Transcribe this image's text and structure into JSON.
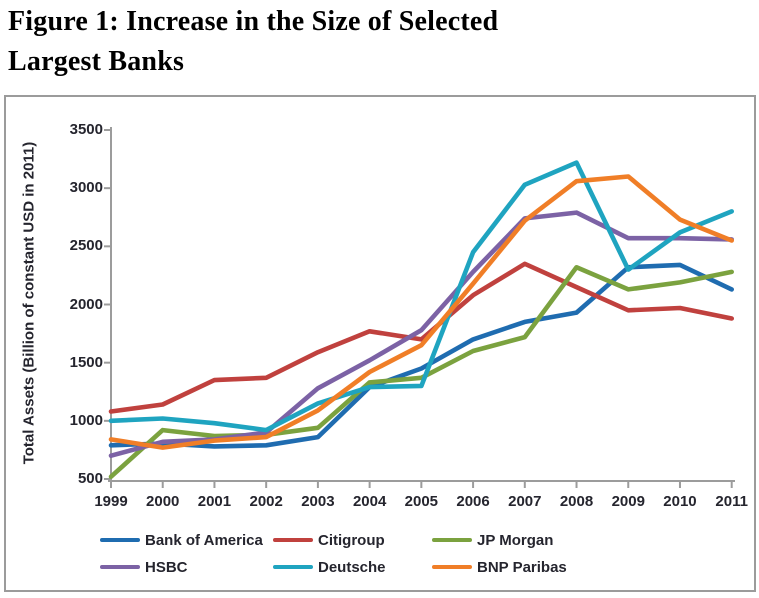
{
  "page": {
    "title_line1": "Figure 1: Increase in the Size of Selected",
    "title_line2": "Largest Banks"
  },
  "chart_data": {
    "type": "line",
    "title": "Figure 1: Increase in the Size of Selected Largest Banks",
    "xlabel": "",
    "ylabel": "Total Assets (Billion of constant USD in 2011)",
    "ylim": [
      500,
      3500
    ],
    "yticks": [
      500,
      1000,
      1500,
      2000,
      2500,
      3000,
      3500
    ],
    "x": [
      1999,
      2000,
      2001,
      2002,
      2003,
      2004,
      2005,
      2006,
      2007,
      2008,
      2009,
      2010,
      2011
    ],
    "grid": false,
    "legend_position": "bottom",
    "series": [
      {
        "name": "Bank of America",
        "color": "#1F6CB0",
        "values": [
          790,
          805,
          780,
          790,
          860,
          1290,
          1450,
          1700,
          1850,
          1930,
          2320,
          2340,
          2130
        ]
      },
      {
        "name": "Citigroup",
        "color": "#C0413E",
        "values": [
          1080,
          1140,
          1350,
          1370,
          1590,
          1770,
          1700,
          2080,
          2350,
          2150,
          1950,
          1970,
          1880
        ]
      },
      {
        "name": "JP Morgan",
        "color": "#7BA23F",
        "values": [
          520,
          920,
          870,
          880,
          940,
          1330,
          1370,
          1600,
          1720,
          2320,
          2130,
          2190,
          2280
        ]
      },
      {
        "name": "HSBC",
        "color": "#7C62A5",
        "values": [
          700,
          820,
          840,
          900,
          1280,
          1520,
          1780,
          2280,
          2740,
          2790,
          2570,
          2570,
          2560
        ]
      },
      {
        "name": "Deutsche",
        "color": "#1FA4C0",
        "values": [
          1000,
          1020,
          980,
          920,
          1150,
          1290,
          1300,
          2450,
          3030,
          3220,
          2300,
          2620,
          2800
        ]
      },
      {
        "name": "BNP Paribas",
        "color": "#F07E27",
        "values": [
          840,
          770,
          830,
          860,
          1090,
          1420,
          1650,
          2180,
          2720,
          3060,
          3100,
          2730,
          2550
        ]
      }
    ]
  },
  "style": {
    "axis_color": "#9C9C9C",
    "text_color": "#25252E",
    "frame_border_color": "#9B9B9B"
  }
}
